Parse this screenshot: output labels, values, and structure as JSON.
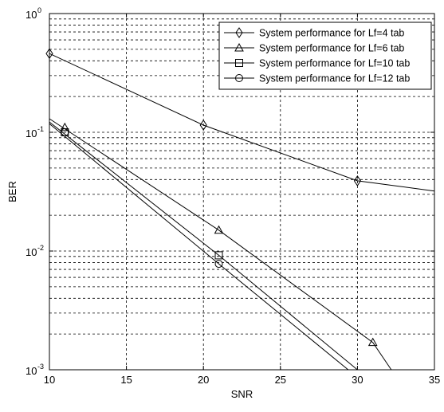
{
  "chart_data": {
    "type": "line",
    "title": "",
    "xlabel": "SNR",
    "ylabel": "BER",
    "xlim": [
      10,
      35
    ],
    "ylim": [
      0.001,
      1
    ],
    "yscale": "log",
    "grid": true,
    "legend_position": "top-right",
    "x_ticks": [
      "10",
      "15",
      "20",
      "25",
      "30",
      "35"
    ],
    "y_ticks": [
      {
        "base": "10",
        "exp": "-3",
        "value": 0.001
      },
      {
        "base": "10",
        "exp": "-2",
        "value": 0.01
      },
      {
        "base": "10",
        "exp": "-1",
        "value": 0.1
      },
      {
        "base": "10",
        "exp": "0",
        "value": 1
      }
    ],
    "series": [
      {
        "name": "System performance for Lf=4 tab",
        "marker": "diamond",
        "line_points": [
          [
            10,
            0.46
          ],
          [
            20,
            0.115
          ],
          [
            30,
            0.039
          ],
          [
            35,
            0.032
          ]
        ],
        "marker_points": [
          [
            10,
            0.46
          ],
          [
            20,
            0.115
          ],
          [
            30,
            0.039
          ]
        ]
      },
      {
        "name": "System performance for Lf=6 tab",
        "marker": "triangle",
        "line_points": [
          [
            10,
            0.13
          ],
          [
            21,
            0.015
          ],
          [
            31,
            0.0017
          ],
          [
            32.2,
            0.001
          ]
        ],
        "marker_points": [
          [
            11,
            0.11
          ],
          [
            21,
            0.015
          ],
          [
            31,
            0.0017
          ]
        ]
      },
      {
        "name": "System performance for Lf=10 tab",
        "marker": "square",
        "line_points": [
          [
            10,
            0.122
          ],
          [
            21,
            0.0092
          ],
          [
            30,
            0.001
          ]
        ],
        "marker_points": [
          [
            11,
            0.1
          ],
          [
            21,
            0.0092
          ]
        ]
      },
      {
        "name": "System performance for Lf=12 tab",
        "marker": "circle",
        "line_points": [
          [
            10,
            0.118
          ],
          [
            21,
            0.0078
          ],
          [
            29.4,
            0.001
          ]
        ],
        "marker_points": [
          [
            11,
            0.1
          ],
          [
            21,
            0.0078
          ]
        ]
      }
    ]
  }
}
